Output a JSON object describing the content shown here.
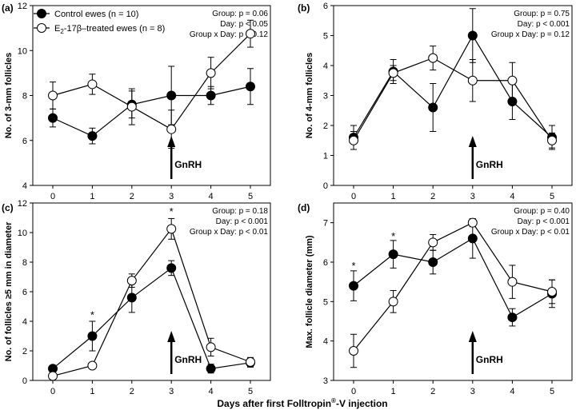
{
  "figure": {
    "xlabel_prefix": "Days after first Folltropin",
    "xlabel_mark": "®",
    "xlabel_suffix": "-V injection"
  },
  "legend": {
    "control": "Control ewes (n = 10)",
    "treated_prefix": "E",
    "treated_sub": "2",
    "treated_suffix": "-17β–treated ewes (n = 8)"
  },
  "colors": {
    "control_marker": "#000000",
    "treated_marker": "#ffffff"
  },
  "chart_data": [
    {
      "label": "(a)",
      "type": "line",
      "ylabel": "No. of 3-mm follicles",
      "ylim": [
        4,
        12
      ],
      "yticks": [
        4,
        6,
        8,
        10,
        12
      ],
      "x": [
        0,
        1,
        2,
        3,
        4,
        5
      ],
      "xticks": [
        0,
        1,
        2,
        3,
        4,
        5
      ],
      "series": [
        {
          "name": "Control ewes (n = 10)",
          "values": [
            7.0,
            6.2,
            7.6,
            8.0,
            8.0,
            8.4
          ],
          "err": [
            0.4,
            0.35,
            0.6,
            1.3,
            0.4,
            0.8
          ],
          "filled": true
        },
        {
          "name": "E2-17β–treated ewes (n = 8)",
          "values": [
            8.0,
            8.5,
            7.5,
            6.5,
            9.0,
            10.75
          ],
          "err": [
            0.6,
            0.45,
            0.8,
            0.85,
            0.7,
            0.6
          ],
          "filled": false
        }
      ],
      "stats": [
        "Group: p = 0.06",
        "Day: p < 0.05",
        "Group x Day: p = 0.12"
      ],
      "annotation": {
        "text": "GnRH",
        "x": 3
      },
      "stars": []
    },
    {
      "label": "(b)",
      "type": "line",
      "ylabel": "No. of 4-mm follicles",
      "ylim": [
        0,
        6
      ],
      "yticks": [
        0,
        1,
        2,
        3,
        4,
        5,
        6
      ],
      "x": [
        0,
        1,
        2,
        3,
        4,
        5
      ],
      "xticks": [
        0,
        1,
        2,
        3,
        4,
        5
      ],
      "series": [
        {
          "name": "Control ewes (n = 10)",
          "values": [
            1.6,
            3.8,
            2.6,
            5.0,
            2.8,
            1.6
          ],
          "err": [
            0.4,
            0.4,
            0.8,
            0.9,
            0.6,
            0.4
          ],
          "filled": true
        },
        {
          "name": "E2-17β–treated ewes (n = 8)",
          "values": [
            1.5,
            3.75,
            4.25,
            3.5,
            3.5,
            1.5
          ],
          "err": [
            0.3,
            0.25,
            0.4,
            0.7,
            0.6,
            0.25
          ],
          "filled": false
        }
      ],
      "stats": [
        "Group: p = 0.75",
        "Day: p < 0.001",
        "Group x Day: p = 0.12"
      ],
      "annotation": {
        "text": "GnRH",
        "x": 3
      },
      "stars": []
    },
    {
      "label": "(c)",
      "type": "line",
      "ylabel": "No. of follicles ≥5 mm in diameter",
      "ylim": [
        0,
        12
      ],
      "yticks": [
        0,
        2,
        4,
        6,
        8,
        10,
        12
      ],
      "x": [
        0,
        1,
        2,
        3,
        4,
        5
      ],
      "xticks": [
        0,
        1,
        2,
        3,
        4,
        5
      ],
      "series": [
        {
          "name": "Control ewes (n = 10)",
          "values": [
            0.8,
            3.0,
            5.6,
            7.6,
            0.8,
            1.2
          ],
          "err": [
            0.2,
            1.0,
            1.0,
            0.5,
            0.3,
            0.3
          ],
          "filled": true
        },
        {
          "name": "E2-17β–treated ewes (n = 8)",
          "values": [
            0.3,
            1.0,
            6.75,
            10.25,
            2.25,
            1.25
          ],
          "err": [
            0.2,
            0.2,
            0.45,
            0.7,
            0.6,
            0.3
          ],
          "filled": false
        }
      ],
      "stats": [
        "Group: p = 0.18",
        "Day: p < 0.001",
        "Group x Day: p < 0.01"
      ],
      "annotation": {
        "text": "GnRH",
        "x": 3
      },
      "stars": [
        {
          "x": 1,
          "y": 4.4,
          "text": "*"
        },
        {
          "x": 3,
          "y": 11.4,
          "text": "*"
        }
      ]
    },
    {
      "label": "(d)",
      "type": "line",
      "ylabel": "Max. follicle diameter (mm)",
      "ylim": [
        3,
        7.5
      ],
      "yticks": [
        3,
        4,
        5,
        6,
        7
      ],
      "x": [
        0,
        1,
        2,
        3,
        4,
        5
      ],
      "xticks": [
        0,
        1,
        2,
        3,
        4,
        5
      ],
      "series": [
        {
          "name": "Control ewes (n = 10)",
          "values": [
            5.4,
            6.2,
            6.0,
            6.6,
            4.6,
            5.2
          ],
          "err": [
            0.38,
            0.35,
            0.3,
            0.5,
            0.22,
            0.35
          ],
          "filled": true
        },
        {
          "name": "E2-17β–treated ewes (n = 8)",
          "values": [
            3.75,
            5.0,
            6.5,
            7.0,
            5.5,
            5.25
          ],
          "err": [
            0.42,
            0.28,
            0.2,
            0.1,
            0.42,
            0.3
          ],
          "filled": false
        }
      ],
      "stats": [
        "Group: p = 0.40",
        "Day: p < 0.001",
        "Group x Day: p < 0.01"
      ],
      "annotation": {
        "text": "GnRH",
        "x": 3
      },
      "stars": [
        {
          "x": 0,
          "y": 5.9,
          "text": "*"
        },
        {
          "x": 1,
          "y": 6.65,
          "text": "*"
        }
      ]
    }
  ]
}
